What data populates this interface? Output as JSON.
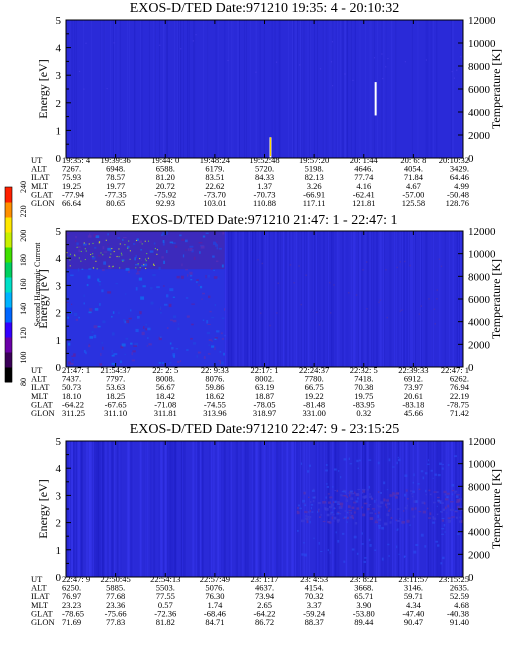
{
  "colors": {
    "background": "#2a2ad8",
    "axis": "#000000",
    "colorbar": [
      "#000000",
      "#3b0058",
      "#6a00a8",
      "#3300ff",
      "#0066ff",
      "#00b3ff",
      "#00e0c8",
      "#00d060",
      "#40e000",
      "#c8f000",
      "#ffe800",
      "#ff9000",
      "#ff2000"
    ]
  },
  "colorbar": {
    "label": "Second Harmonic Current",
    "ticks": [
      "80",
      "100",
      "120",
      "140",
      "160",
      "180",
      "200",
      "220",
      "240"
    ]
  },
  "chart_data": [
    {
      "type": "heatmap",
      "title": "EXOS-D/TED   Date:971210  19:35: 4 - 20:10:32",
      "ylabel": "Energy [eV]",
      "ylim": [
        0,
        5
      ],
      "yticks": [
        "0",
        "1",
        "2",
        "3",
        "4",
        "5"
      ],
      "y2label": "Temperature [K]",
      "y2lim": [
        0,
        12000
      ],
      "y2ticks": [
        "0",
        "2000",
        "4000",
        "6000",
        "8000",
        "10000",
        "12000"
      ],
      "ephemeris_labels": [
        "UT",
        "ALT",
        "ILAT",
        "MLT",
        "GLAT",
        "GLON"
      ],
      "ephemeris": [
        [
          "19:35: 4",
          "7267.",
          "75.93",
          "19.25",
          "-77.94",
          "66.64"
        ],
        [
          "19:39:36",
          "6948.",
          "78.57",
          "19.77",
          "-77.35",
          "80.65"
        ],
        [
          "19:44: 0",
          "6588.",
          "81.20",
          "20.72",
          "-75.92",
          "92.93"
        ],
        [
          "19:48:24",
          "6179.",
          "83.51",
          "22.62",
          "-73.70",
          "103.01"
        ],
        [
          "19:52:48",
          "5720.",
          "84.33",
          "1.37",
          "-70.73",
          "110.88"
        ],
        [
          "19:57:20",
          "5198.",
          "82.13",
          "3.26",
          "-66.91",
          "117.11"
        ],
        [
          "20: 1:44",
          "4646.",
          "77.74",
          "4.16",
          "-62.41",
          "121.81"
        ],
        [
          "20: 6: 8",
          "4054.",
          "71.84",
          "4.67",
          "-57.00",
          "125.58"
        ],
        [
          "20:10:32",
          "3429.",
          "64.46",
          "4.99",
          "-50.48",
          "128.76"
        ]
      ],
      "temperature_trace_K": [
        {
          "x_frac": 0.515,
          "y0": 0,
          "y1": 1800
        },
        {
          "x_frac": 0.78,
          "y0": 3700,
          "y1": 6600
        }
      ]
    },
    {
      "type": "heatmap",
      "title": "EXOS-D/TED   Date:971210  21:47: 1 - 22:47: 1",
      "ylabel": "Energy [eV]",
      "ylim": [
        0,
        5
      ],
      "yticks": [
        "0",
        "1",
        "2",
        "3",
        "4",
        "5"
      ],
      "y2label": "Temperature [K]",
      "y2lim": [
        0,
        12000
      ],
      "y2ticks": [
        "0",
        "2000",
        "4000",
        "6000",
        "8000",
        "10000",
        "12000"
      ],
      "ephemeris_labels": [
        "UT",
        "ALT",
        "ILAT",
        "MLT",
        "GLAT",
        "GLON"
      ],
      "ephemeris": [
        [
          "21:47: 1",
          "7437.",
          "50.73",
          "18.10",
          "-64.22",
          "311.25"
        ],
        [
          "21:54:37",
          "7797.",
          "53.63",
          "18.25",
          "-67.65",
          "311.10"
        ],
        [
          "22: 2: 5",
          "8008.",
          "56.67",
          "18.42",
          "-71.08",
          "311.81"
        ],
        [
          "22: 9:33",
          "8076.",
          "59.86",
          "18.62",
          "-74.55",
          "313.96"
        ],
        [
          "22:17: 1",
          "8002.",
          "63.19",
          "18.87",
          "-78.05",
          "318.97"
        ],
        [
          "22:24:37",
          "7780.",
          "66.75",
          "19.22",
          "-81.48",
          "331.00"
        ],
        [
          "22:32: 5",
          "7418.",
          "70.38",
          "19.75",
          "-83.95",
          "0.32"
        ],
        [
          "22:39:33",
          "6912.",
          "73.97",
          "20.61",
          "-83.18",
          "45.66"
        ],
        [
          "22:47: 1",
          "6262.",
          "76.94",
          "22.19",
          "-78.75",
          "71.42"
        ]
      ]
    },
    {
      "type": "heatmap",
      "title": "EXOS-D/TED   Date:971210  22:47: 9 - 23:15:25",
      "ylabel": "Energy [eV]",
      "ylim": [
        0,
        5
      ],
      "yticks": [
        "0",
        "1",
        "2",
        "3",
        "4",
        "5"
      ],
      "y2label": "Temperature [K]",
      "y2lim": [
        0,
        12000
      ],
      "y2ticks": [
        "0",
        "2000",
        "4000",
        "6000",
        "8000",
        "10000",
        "12000"
      ],
      "ephemeris_labels": [
        "UT",
        "ALT",
        "ILAT",
        "MLT",
        "GLAT",
        "GLON"
      ],
      "ephemeris": [
        [
          "22:47: 9",
          "6250.",
          "76.97",
          "23.23",
          "-78.65",
          "71.69"
        ],
        [
          "22:50:45",
          "5885.",
          "77.68",
          "23.36",
          "-75.66",
          "77.83"
        ],
        [
          "22:54:13",
          "5503.",
          "77.55",
          "0.57",
          "-72.36",
          "81.82"
        ],
        [
          "22:57:49",
          "5076.",
          "76.30",
          "1.74",
          "-68.46",
          "84.71"
        ],
        [
          "23: 1:17",
          "4637.",
          "73.94",
          "2.65",
          "-64.22",
          "86.72"
        ],
        [
          "23: 4:53",
          "4154.",
          "70.32",
          "3.37",
          "-59.24",
          "88.37"
        ],
        [
          "23: 8:21",
          "3668.",
          "65.71",
          "3.90",
          "-53.80",
          "89.44"
        ],
        [
          "23:11:57",
          "3146.",
          "59.71",
          "4.34",
          "-47.40",
          "90.47"
        ],
        [
          "23:15:25",
          "2635.",
          "52.59",
          "4.68",
          "-40.38",
          "91.40"
        ]
      ]
    }
  ]
}
